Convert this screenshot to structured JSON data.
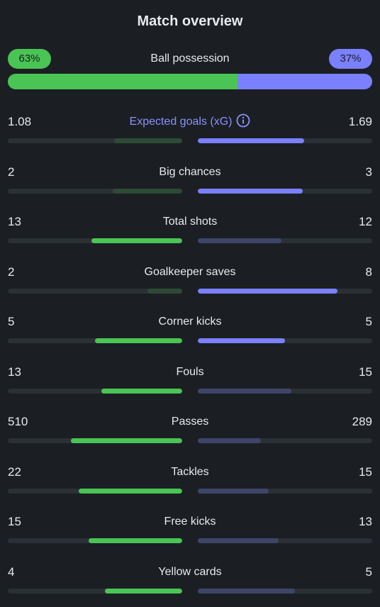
{
  "title": "Match overview",
  "possession": {
    "label": "Ball possession",
    "home_text": "63%",
    "away_text": "37%",
    "home_value": 63,
    "away_value": 37,
    "home_color": "#4ac454",
    "away_color": "#7a80ff"
  },
  "stats": [
    {
      "name": "expected-goals",
      "label": "Expected goals (xG)",
      "home": "1.08",
      "away": "1.69",
      "home_num": 1.08,
      "away_num": 1.69,
      "leader": "away",
      "has_info": true,
      "info_icon": "info-icon"
    },
    {
      "name": "big-chances",
      "label": "Big chances",
      "home": "2",
      "away": "3",
      "home_num": 2,
      "away_num": 3,
      "leader": "away"
    },
    {
      "name": "total-shots",
      "label": "Total shots",
      "home": "13",
      "away": "12",
      "home_num": 13,
      "away_num": 12,
      "leader": "home"
    },
    {
      "name": "goalkeeper-saves",
      "label": "Goalkeeper saves",
      "home": "2",
      "away": "8",
      "home_num": 2,
      "away_num": 8,
      "leader": "away"
    },
    {
      "name": "corner-kicks",
      "label": "Corner kicks",
      "home": "5",
      "away": "5",
      "home_num": 5,
      "away_num": 5,
      "leader": "both"
    },
    {
      "name": "fouls",
      "label": "Fouls",
      "home": "13",
      "away": "15",
      "home_num": 13,
      "away_num": 15,
      "leader": "home"
    },
    {
      "name": "passes",
      "label": "Passes",
      "home": "510",
      "away": "289",
      "home_num": 510,
      "away_num": 289,
      "leader": "home"
    },
    {
      "name": "tackles",
      "label": "Tackles",
      "home": "22",
      "away": "15",
      "home_num": 22,
      "away_num": 15,
      "leader": "home"
    },
    {
      "name": "free-kicks",
      "label": "Free kicks",
      "home": "15",
      "away": "13",
      "home_num": 15,
      "away_num": 13,
      "leader": "home"
    },
    {
      "name": "yellow-cards",
      "label": "Yellow cards",
      "home": "4",
      "away": "5",
      "home_num": 4,
      "away_num": 5,
      "leader": "home"
    }
  ],
  "colors": {
    "background": "#1b1f23",
    "home_strong": "#4ac454",
    "home_weak": "#2d4a34",
    "away_strong": "#7a80ff",
    "away_weak": "#3f4569",
    "track": "#2b3035",
    "accent_text": "#8b90ff"
  }
}
